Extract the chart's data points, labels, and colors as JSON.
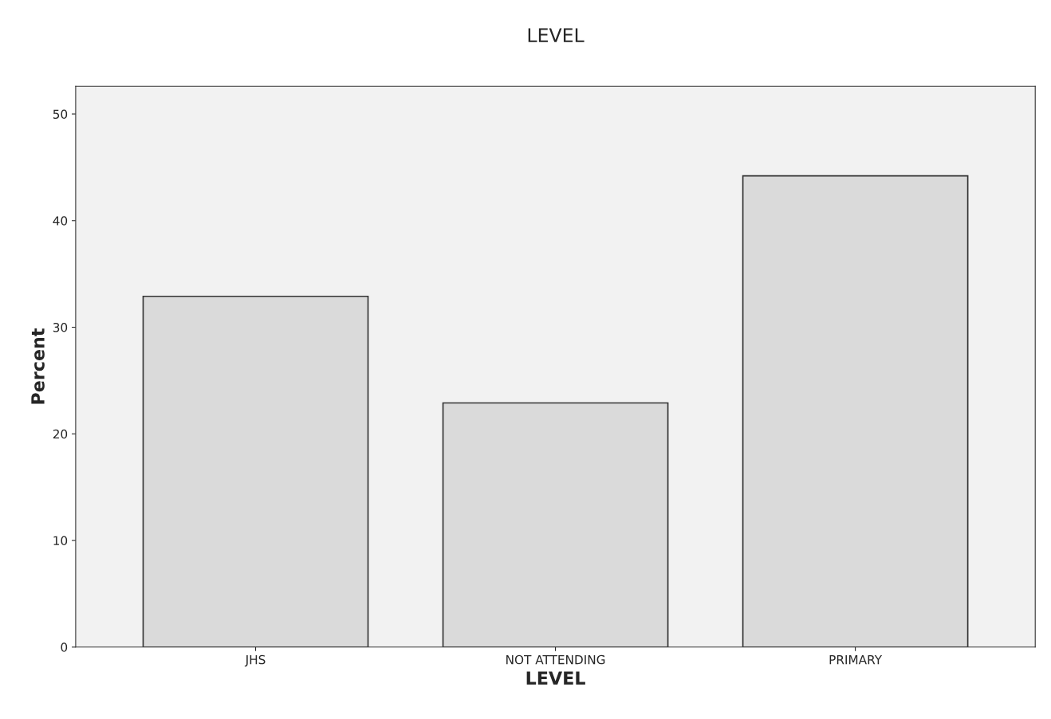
{
  "chart_data": {
    "type": "bar",
    "title": "LEVEL",
    "xlabel": "LEVEL",
    "ylabel": "Percent",
    "categories": [
      "JHS",
      "NOT ATTENDING",
      "PRIMARY"
    ],
    "values": [
      32.9,
      22.9,
      44.2
    ],
    "color": "#dadada",
    "ylim": [
      0,
      52.6
    ],
    "yticks": [
      0,
      10,
      20,
      30,
      40,
      50
    ],
    "grid": false,
    "legend": false
  }
}
